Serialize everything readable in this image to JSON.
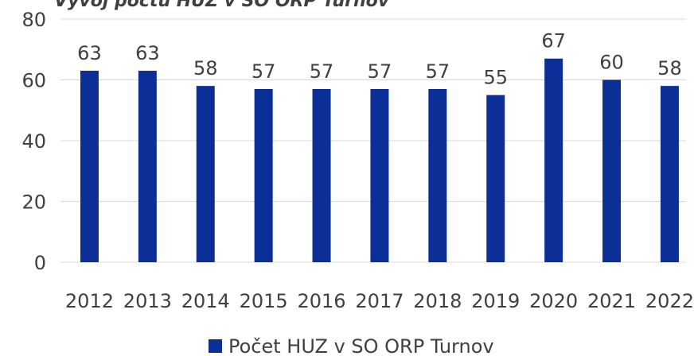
{
  "chart_data": {
    "type": "bar",
    "title": "Vývoj počtu HUZ v SO ORP Turnov",
    "categories": [
      "2012",
      "2013",
      "2014",
      "2015",
      "2016",
      "2017",
      "2018",
      "2019",
      "2020",
      "2021",
      "2022"
    ],
    "series": [
      {
        "name": "Počet HUZ v SO ORP Turnov",
        "color": "#0b2f96",
        "values": [
          63,
          63,
          58,
          57,
          57,
          57,
          57,
          55,
          67,
          60,
          58
        ]
      }
    ],
    "ylim": [
      0,
      80
    ],
    "yticks": [
      0,
      20,
      40,
      60,
      80
    ],
    "grid": true,
    "legend": "bottom"
  }
}
